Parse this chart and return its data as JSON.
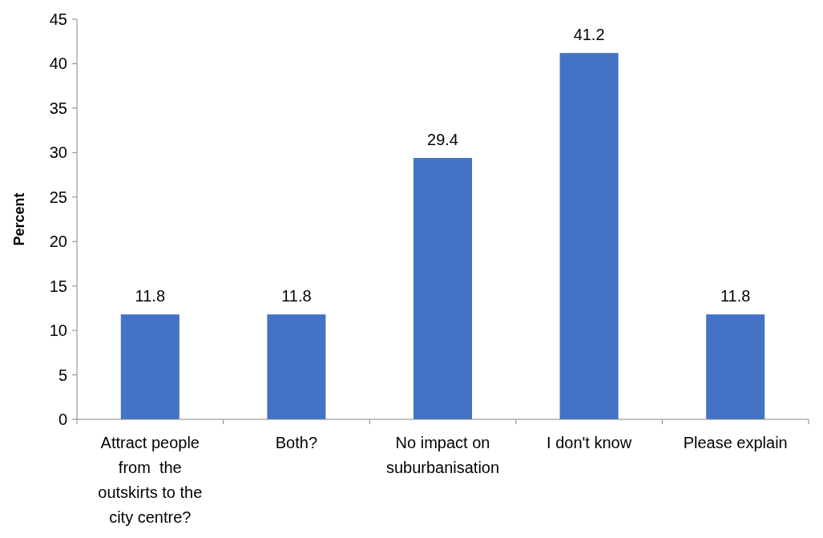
{
  "chart_data": {
    "type": "bar",
    "ylabel": "Percent",
    "categories": [
      "Attract people from  the outskirts to the city centre?",
      "Both?",
      "No impact on suburbanisation",
      "I don't know",
      "Please explain"
    ],
    "values": [
      11.8,
      11.8,
      29.4,
      41.2,
      11.8
    ],
    "color": "#4472c4",
    "ylim": [
      0,
      45
    ],
    "yticks": [
      0,
      5,
      10,
      15,
      20,
      25,
      30,
      35,
      40,
      45
    ],
    "data_labels": true,
    "grid": false
  }
}
